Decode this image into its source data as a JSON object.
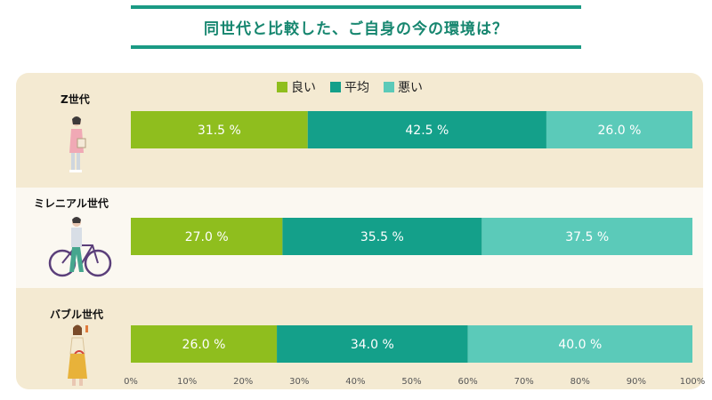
{
  "chart_data": {
    "type": "bar",
    "orientation": "horizontal",
    "stacked": true,
    "title": "同世代と比較した、ご自身の今の環境は？",
    "categories": [
      "Z世代",
      "ミレニアル世代",
      "バブル世代"
    ],
    "series": [
      {
        "name": "良い",
        "color": "#8fbe1e",
        "values": [
          31.5,
          27.0,
          26.0
        ],
        "labels": [
          "31.5 %",
          "27.0 %",
          "26.0 %"
        ]
      },
      {
        "name": "平均",
        "color": "#14a08a",
        "values": [
          42.5,
          35.5,
          34.0
        ],
        "labels": [
          "42.5 %",
          "35.5 %",
          "34.0 %"
        ]
      },
      {
        "name": "悪い",
        "color": "#5bcab9",
        "values": [
          26.0,
          37.5,
          40.0
        ],
        "labels": [
          "26.0 %",
          "37.5 %",
          "40.0 %"
        ]
      }
    ],
    "xlim": [
      0,
      100
    ],
    "xticks": [
      "0%",
      "10%",
      "20%",
      "30%",
      "40%",
      "50%",
      "60%",
      "70%",
      "80%",
      "90%",
      "100%"
    ],
    "legend_position": "top-center",
    "grid": false
  }
}
